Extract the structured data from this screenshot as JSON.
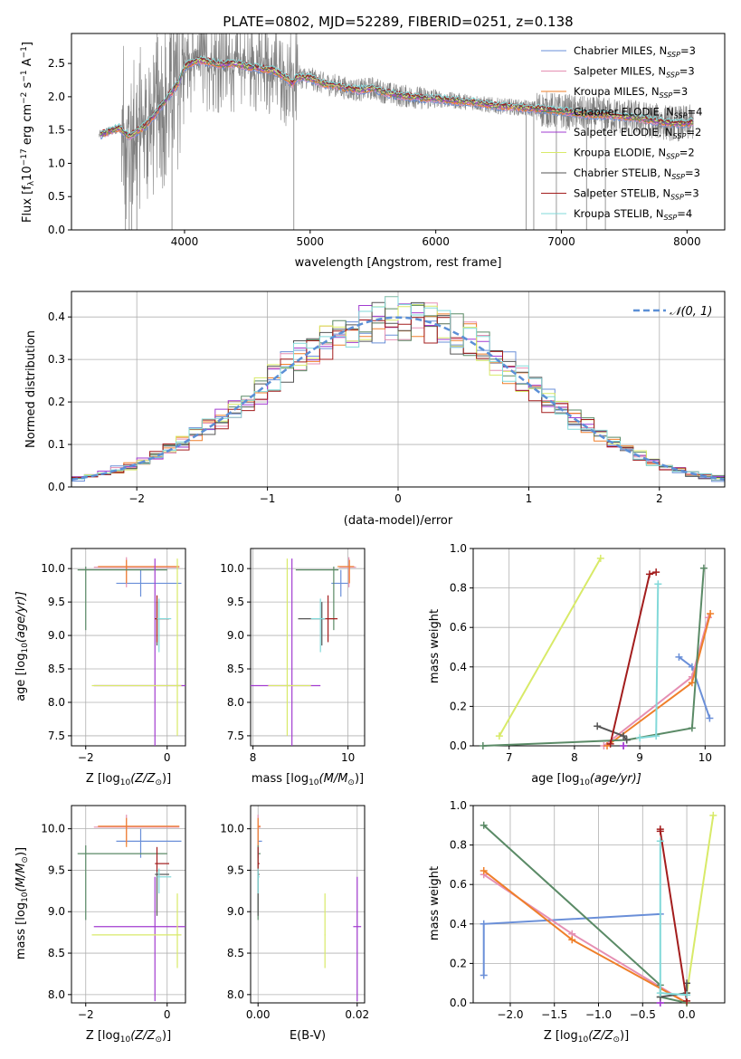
{
  "series_styles": [
    {
      "name": "Chabrier MILES",
      "nssp": "3",
      "color": "#6a8fd8"
    },
    {
      "name": "Salpeter MILES",
      "nssp": "3",
      "color": "#e58fb3"
    },
    {
      "name": "Kroupa MILES",
      "nssp": "3",
      "color": "#ef7f2a"
    },
    {
      "name": "Chabrier ELODIE",
      "nssp": "4",
      "color": "#5a8a66"
    },
    {
      "name": "Salpeter ELODIE",
      "nssp": "2",
      "color": "#a23bd0"
    },
    {
      "name": "Kroupa ELODIE",
      "nssp": "2",
      "color": "#d8ea68"
    },
    {
      "name": "Chabrier STELIB",
      "nssp": "3",
      "color": "#555555"
    },
    {
      "name": "Salpeter STELIB",
      "nssp": "3",
      "color": "#a31d1d"
    },
    {
      "name": "Kroupa STELIB",
      "nssp": "4",
      "color": "#82d9d9"
    }
  ],
  "legend_suffix": "N",
  "legend_sub": "SSP",
  "spectrum_color": "#808080",
  "normal_color": "#5b8fd6",
  "chart_data": [
    {
      "type": "line",
      "title": "PLATE=0802, MJD=52289, FIBERID=0251, z=0.138",
      "xlabel": "wavelength [Angstrom, rest frame]",
      "ylabel_main": "Flux [f",
      "ylabel_sub": "λ",
      "ylabel_rest": "10",
      "ylabel_exp": "−17",
      "ylabel_unit": " erg cm",
      "ylabel_unit_exp": "−2",
      "ylabel_s": " s",
      "ylabel_s_exp": "−1",
      "ylabel_a": " A",
      "ylabel_a_exp": "−1",
      "ylabel_end": "]",
      "xlim": [
        3100,
        8300
      ],
      "ylim": [
        0,
        2.95
      ],
      "xticks": [
        "4000",
        "5000",
        "6000",
        "7000",
        "8000"
      ],
      "yticks": [
        "0.0",
        "0.5",
        "1.0",
        "1.5",
        "2.0",
        "2.5"
      ],
      "continuum": {
        "x": [
          3320,
          3400,
          3480,
          3560,
          3600,
          3680,
          3750,
          3850,
          3950,
          4000,
          4100,
          4200,
          4300,
          4400,
          4500,
          4600,
          4700,
          4800,
          4860,
          4900,
          5000,
          5100,
          5200,
          5300,
          5400,
          5500,
          5600,
          5700,
          5800,
          5900,
          6000,
          6100,
          6200,
          6300,
          6400,
          6500,
          6600,
          6700,
          6800,
          6900,
          7000,
          7100,
          7200,
          7300,
          7400,
          7500,
          7600,
          7700,
          7800,
          7900,
          8000,
          8050
        ],
        "y": [
          1.42,
          1.48,
          1.53,
          1.4,
          1.45,
          1.55,
          1.7,
          1.95,
          2.2,
          2.45,
          2.55,
          2.52,
          2.48,
          2.5,
          2.45,
          2.42,
          2.4,
          2.3,
          2.2,
          2.3,
          2.28,
          2.2,
          2.17,
          2.12,
          2.1,
          2.13,
          2.06,
          2.02,
          2.0,
          1.98,
          1.97,
          1.95,
          1.93,
          1.92,
          1.88,
          1.86,
          1.85,
          1.83,
          1.82,
          1.8,
          1.78,
          1.76,
          1.73,
          1.73,
          1.72,
          1.7,
          1.68,
          1.65,
          1.62,
          1.6,
          1.6,
          1.62
        ]
      }
    },
    {
      "type": "bar",
      "xlabel": "(data-model)/error",
      "ylabel": "Normed distribution",
      "xlim": [
        -2.5,
        2.5
      ],
      "ylim": [
        0,
        0.46
      ],
      "xticks": [
        "−2",
        "−1",
        "0",
        "1",
        "2"
      ],
      "yticks": [
        "0.0",
        "0.1",
        "0.2",
        "0.3",
        "0.4"
      ],
      "legend": "𝒩(0, 1)",
      "bin_width": 0.1
    },
    {
      "type": "scatter",
      "xlabel_main": "Z [log",
      "xlabel_sub": "10",
      "xlabel_rest": "(Z/Z",
      "xlabel_end": ")]",
      "ylabel_main": "age  [log",
      "ylabel_sub": "10",
      "ylabel_rest": "(age/yr)]",
      "xlim": [
        -2.35,
        0.45
      ],
      "ylim": [
        7.35,
        10.3
      ],
      "xticks": [
        "−2",
        "0"
      ],
      "yticks": [
        "7.5",
        "8.0",
        "8.5",
        "9.0",
        "9.5",
        "10.0"
      ]
    },
    {
      "type": "scatter",
      "xlabel_main": "mass [log",
      "xlabel_sub": "10",
      "xlabel_rest": "(M/M",
      "xlabel_end": ")]",
      "xlim": [
        7.95,
        10.35
      ],
      "ylim": [
        7.35,
        10.3
      ],
      "xticks": [
        "8",
        "10"
      ],
      "yticks": [
        "7.5",
        "8.0",
        "8.5",
        "9.0",
        "9.5",
        "10.0"
      ]
    },
    {
      "type": "line",
      "xlabel_main": "age  [log",
      "xlabel_sub": "10",
      "xlabel_rest": "(age/yr)]",
      "ylabel": "mass weight",
      "xlim": [
        6.45,
        10.3
      ],
      "ylim": [
        0,
        1.0
      ],
      "xticks": [
        "7",
        "8",
        "9",
        "10"
      ],
      "yticks": [
        "0.0",
        "0.2",
        "0.4",
        "0.6",
        "0.8",
        "1.0"
      ]
    },
    {
      "type": "scatter",
      "xlabel_main": "Z [log",
      "xlabel_sub": "10",
      "xlabel_rest": "(Z/Z",
      "xlabel_end": ")]",
      "ylabel_main": "mass [log",
      "ylabel_sub": "10",
      "ylabel_rest": "(M/M",
      "ylabel_end": ")]",
      "xlim": [
        -2.35,
        0.45
      ],
      "ylim": [
        7.9,
        10.28
      ],
      "xticks": [
        "−2",
        "0"
      ],
      "yticks": [
        "8.0",
        "8.5",
        "9.0",
        "9.5",
        "10.0"
      ]
    },
    {
      "type": "scatter",
      "xlabel": "E(B-V)",
      "xlim": [
        -0.0015,
        0.0215
      ],
      "ylim": [
        7.9,
        10.28
      ],
      "xticks": [
        "0.00",
        "0.02"
      ],
      "yticks": [
        "8.0",
        "8.5",
        "9.0",
        "9.5",
        "10.0"
      ]
    },
    {
      "type": "line",
      "xlabel_main": "Z [log",
      "xlabel_sub": "10",
      "xlabel_rest": "(Z/Z",
      "xlabel_end": ")]",
      "ylabel": "mass weight",
      "xlim": [
        -2.42,
        0.43
      ],
      "ylim": [
        0,
        1.0
      ],
      "xticks": [
        "−2.0",
        "−1.5",
        "−1.0",
        "−0.5",
        "0.0"
      ],
      "yticks": [
        "0.0",
        "0.2",
        "0.4",
        "0.6",
        "0.8",
        "1.0"
      ]
    }
  ],
  "ssp_models": [
    {
      "age": [
        9.6,
        9.8,
        10.07
      ],
      "Z": [
        -0.3,
        -2.3,
        -2.3
      ],
      "w": [
        0.45,
        0.4,
        0.14
      ],
      "mass": 9.85,
      "ebv": 0.0,
      "age_mean": 9.78,
      "Z_mean": -0.65,
      "mass_mean": 9.85,
      "ebv_mean": 0.0
    },
    {
      "age": [
        8.45,
        9.8,
        10.05
      ],
      "Z": [
        0.0,
        -1.3,
        -2.3
      ],
      "w": [
        0.0,
        0.35,
        0.65
      ],
      "mass": 10.02,
      "ebv": 0.0,
      "age_mean": 10.02,
      "Z_mean": -1.0,
      "mass_mean": 10.02,
      "ebv_mean": 0.0
    },
    {
      "age": [
        8.5,
        9.8,
        10.08
      ],
      "Z": [
        0.0,
        -1.3,
        -2.3
      ],
      "w": [
        0.0,
        0.32,
        0.67
      ],
      "mass": 10.03,
      "ebv": 0.0,
      "age_mean": 10.03,
      "Z_mean": -1.0,
      "mass_mean": 10.03,
      "ebv_mean": 0.0
    },
    {
      "age": [
        6.6,
        8.8,
        9.8,
        9.98
      ],
      "Z": [
        0.0,
        -0.3,
        -0.3,
        -2.3
      ],
      "w": [
        0.0,
        0.03,
        0.09,
        0.9
      ],
      "mass": 9.7,
      "ebv": 0.0,
      "age_mean": 9.98,
      "Z_mean": -2.0,
      "mass_mean": 9.7,
      "ebv_mean": 0.0
    },
    {
      "age": [
        8.75,
        8.75
      ],
      "Z": [
        -0.3,
        -0.3
      ],
      "w": [
        0.0,
        0.0
      ],
      "mass": 8.82,
      "ebv": 0.02,
      "age_mean": 8.25,
      "Z_mean": -0.3,
      "mass_mean": 8.82,
      "ebv_mean": 0.02
    },
    {
      "age": [
        6.85,
        8.4
      ],
      "Z": [
        0.0,
        0.3
      ],
      "w": [
        0.05,
        0.95
      ],
      "mass": 8.72,
      "ebv": 0.0135,
      "age_mean": 8.25,
      "Z_mean": 0.25,
      "mass_mean": 8.72,
      "ebv_mean": 0.0135
    },
    {
      "age": [
        8.35,
        8.75,
        8.8
      ],
      "Z": [
        0.0,
        0.0,
        -0.3
      ],
      "w": [
        0.1,
        0.05,
        0.03
      ],
      "mass": 9.45,
      "ebv": 0.0,
      "age_mean": 9.25,
      "Z_mean": -0.25,
      "mass_mean": 9.45,
      "ebv_mean": 0.0
    },
    {
      "age": [
        8.55,
        9.15,
        9.25
      ],
      "Z": [
        0.0,
        -0.3,
        -0.3
      ],
      "w": [
        0.01,
        0.87,
        0.88
      ],
      "mass": 9.58,
      "ebv": 0.0,
      "age_mean": 9.25,
      "Z_mean": -0.25,
      "mass_mean": 9.58,
      "ebv_mean": 0.0
    },
    {
      "age": [
        9.0,
        9.25,
        9.28
      ],
      "Z": [
        0.0,
        -0.3,
        -0.3
      ],
      "w": [
        0.04,
        0.05,
        0.82
      ],
      "mass": 9.42,
      "ebv": 0.0,
      "age_mean": 9.25,
      "Z_mean": -0.2,
      "mass_mean": 9.42,
      "ebv_mean": 0.0
    }
  ]
}
